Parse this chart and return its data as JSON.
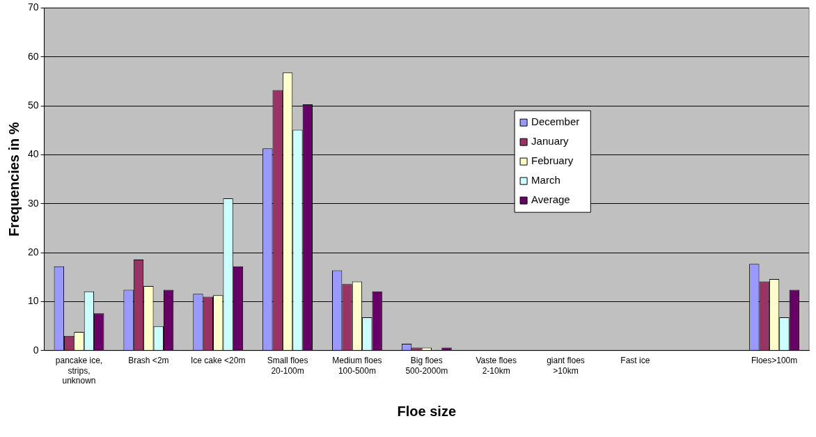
{
  "chart_data": {
    "type": "bar",
    "xlabel": "Floe size",
    "ylabel": "Frequencies in %",
    "categories": [
      "pancake ice, strips, unknown",
      "Brash <2m",
      "Ice cake <20m",
      "Small floes 20-100m",
      "Medium floes 100-500m",
      "Big floes 500-2000m",
      "Vaste floes 2-10km",
      "giant floes >10km",
      "Fast ice",
      null,
      "Floes>100m"
    ],
    "series": [
      {
        "name": "December",
        "color": "#9999ff",
        "values": [
          17.2,
          12.4,
          11.6,
          41.3,
          16.4,
          1.4,
          0,
          0,
          0,
          null,
          17.7
        ]
      },
      {
        "name": "January",
        "color": "#993366",
        "values": [
          3,
          18.6,
          11,
          53.2,
          13.6,
          0.6,
          0,
          0,
          0,
          null,
          14.1
        ]
      },
      {
        "name": "February",
        "color": "#ffffcc",
        "values": [
          3.8,
          13.2,
          11.3,
          56.8,
          14.1,
          0.6,
          0,
          0,
          0,
          null,
          14.6
        ]
      },
      {
        "name": "March",
        "color": "#ccffff",
        "values": [
          12.1,
          5,
          31.1,
          45.1,
          6.8,
          0,
          0,
          0,
          0,
          null,
          6.8
        ]
      },
      {
        "name": "Average",
        "color": "#660066",
        "values": [
          7.6,
          12.4,
          17.2,
          50.3,
          12.1,
          0.6,
          0,
          0,
          0,
          null,
          12.4
        ]
      }
    ],
    "ylim": [
      0,
      70
    ],
    "yticks": [
      0,
      10,
      20,
      30,
      40,
      50,
      60,
      70
    ],
    "grid": "y",
    "legend": "right"
  }
}
